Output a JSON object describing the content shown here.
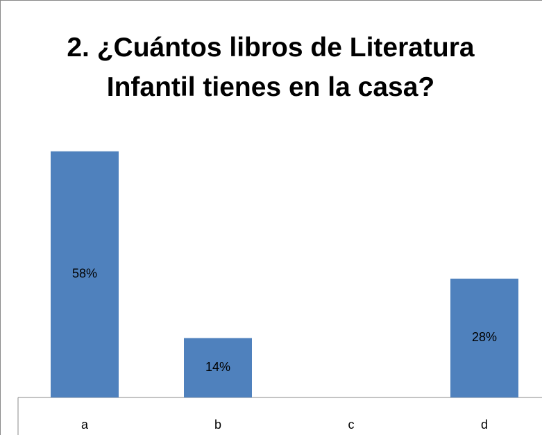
{
  "chart_data": {
    "type": "bar",
    "title": "2. ¿Cuántos libros de Literatura Infantil tienes en la casa?",
    "categories": [
      "a",
      "b",
      "c",
      "d"
    ],
    "values": [
      58,
      14,
      0,
      28
    ],
    "value_labels": [
      "58%",
      "14%",
      null,
      "28%"
    ],
    "color": "#4f81bd",
    "ylim": [
      0,
      65
    ]
  }
}
